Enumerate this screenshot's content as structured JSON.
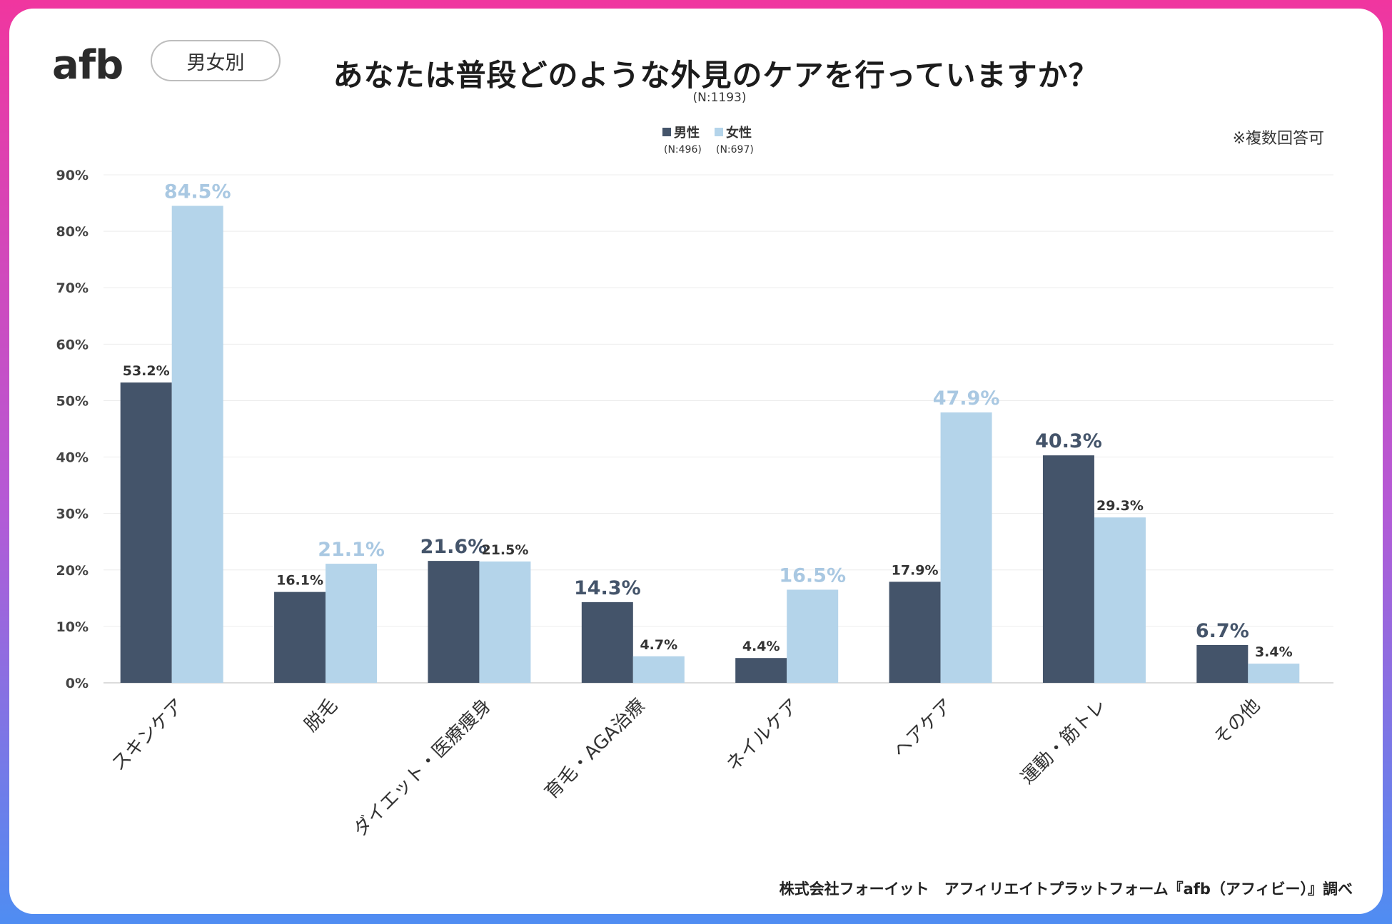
{
  "header": {
    "logo_text": "afb",
    "tag_label": "男女別",
    "title": "あなたは普段どのような外見のケアを行っていますか？",
    "sample_size": "(N:1193)"
  },
  "legend": [
    {
      "name": "男性",
      "n": "(N:496)",
      "color": "#44546a"
    },
    {
      "name": "女性",
      "n": "(N:697)",
      "color": "#b4d4ea"
    }
  ],
  "note": "※複数回答可",
  "footer": "株式会社フォーイット　アフィリエイトプラットフォーム『afb（アフィビー）』調べ",
  "colors": {
    "male": "#44546a",
    "female": "#b4d4ea",
    "male_highlight_label": "#44546a",
    "female_highlight_label": "#a9c8e2",
    "plain_label": "#333333"
  },
  "chart_data": {
    "type": "bar",
    "title": "あなたは普段どのような外見のケアを行っていますか？",
    "xlabel": "",
    "ylabel": "",
    "ylim": [
      0,
      90
    ],
    "yticks": [
      0,
      10,
      20,
      30,
      40,
      50,
      60,
      70,
      80,
      90
    ],
    "ytick_labels": [
      "0%",
      "10%",
      "20%",
      "30%",
      "40%",
      "50%",
      "60%",
      "70%",
      "80%",
      "90%"
    ],
    "grid": true,
    "legend_position": "top-center",
    "categories": [
      "スキンケア",
      "脱毛",
      "ダイエット・医療痩身",
      "育毛・AGA治療",
      "ネイルケア",
      "ヘアケア",
      "運動・筋トレ",
      "その他"
    ],
    "series": [
      {
        "name": "男性",
        "values": [
          53.2,
          16.1,
          21.6,
          14.3,
          4.4,
          17.9,
          40.3,
          6.7
        ],
        "labels": [
          "53.2%",
          "16.1%",
          "21.6%",
          "14.3%",
          "4.4%",
          "17.9%",
          "40.3%",
          "6.7%"
        ],
        "highlight": [
          false,
          false,
          true,
          true,
          false,
          false,
          true,
          true
        ]
      },
      {
        "name": "女性",
        "values": [
          84.5,
          21.1,
          21.5,
          4.7,
          16.5,
          47.9,
          29.3,
          3.4
        ],
        "labels": [
          "84.5%",
          "21.1%",
          "21.5%",
          "4.7%",
          "16.5%",
          "47.9%",
          "29.3%",
          "3.4%"
        ],
        "highlight": [
          true,
          true,
          false,
          false,
          true,
          true,
          false,
          false
        ]
      }
    ]
  }
}
